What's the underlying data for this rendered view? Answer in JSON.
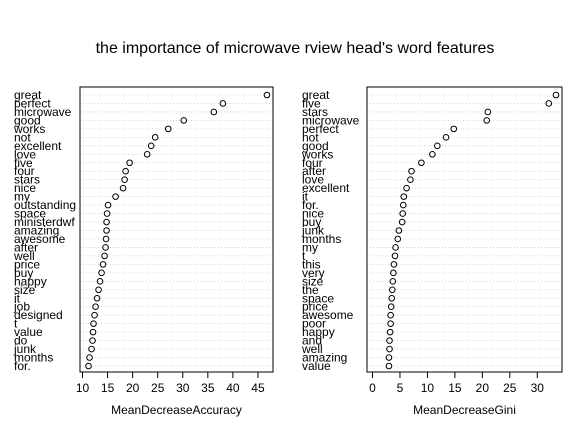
{
  "chart_data": [
    {
      "type": "scatter",
      "title": "the importance of microwave rview head's word features",
      "xlabel": "MeanDecreaseAccuracy",
      "xlim": [
        9.5,
        48
      ],
      "xticks": [
        10,
        15,
        20,
        25,
        30,
        35,
        40,
        45
      ],
      "grid": true,
      "categories": [
        "great",
        "perfect",
        "microwave",
        "good",
        "works",
        "not",
        "excellent",
        "love",
        "five",
        "four",
        "stars",
        "nice",
        "my",
        "outstanding",
        "space",
        "ministerdwf",
        "amazing",
        "awesome",
        "after",
        "well",
        "price",
        "buy",
        "happy",
        "size",
        "it",
        "job",
        "designed",
        "t",
        "value",
        "do",
        "junk",
        "months",
        "for."
      ],
      "values": [
        46.8,
        38,
        36.2,
        30.2,
        27.1,
        24.5,
        23.7,
        22.9,
        19.4,
        18.6,
        18.4,
        18.1,
        16.6,
        15.1,
        14.9,
        14.8,
        14.8,
        14.7,
        14.6,
        14.4,
        14.1,
        13.8,
        13.5,
        13.2,
        12.9,
        12.6,
        12.4,
        12.2,
        12.1,
        12.0,
        11.8,
        11.4,
        11.2
      ]
    },
    {
      "type": "scatter",
      "title": "",
      "xlabel": "MeanDecreaseGini",
      "xlim": [
        -1,
        34.5
      ],
      "xticks": [
        0,
        5,
        10,
        15,
        20,
        25,
        30
      ],
      "grid": true,
      "categories": [
        "great",
        "five",
        "stars",
        "microwave",
        "perfect",
        "not",
        "good",
        "works",
        "four",
        "after",
        "love",
        "excellent",
        "it",
        "for.",
        "nice",
        "buy",
        "junk",
        "months",
        "my",
        "t",
        "this",
        "very",
        "size",
        "the",
        "space",
        "price",
        "awesome",
        "poor",
        "happy",
        "and",
        "well",
        "amazing",
        "value"
      ],
      "values": [
        33.4,
        32.1,
        21,
        20.8,
        14.8,
        13.4,
        11.8,
        10.9,
        8.9,
        7.1,
        6.9,
        6.2,
        5.7,
        5.6,
        5.5,
        5.4,
        4.8,
        4.6,
        4.2,
        4.1,
        3.9,
        3.8,
        3.7,
        3.6,
        3.5,
        3.4,
        3.3,
        3.3,
        3.2,
        3.1,
        3.1,
        3.0,
        3.0
      ]
    }
  ]
}
